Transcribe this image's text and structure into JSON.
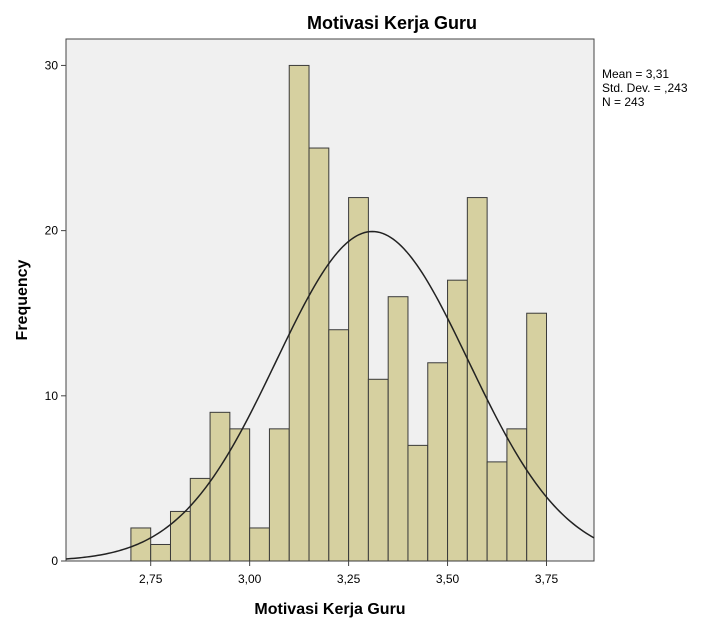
{
  "chart_data": {
    "type": "bar",
    "title": "Motivasi Kerja Guru",
    "xlabel": "Motivasi Kerja Guru",
    "ylabel": "Frequency",
    "bin_width": 0.05,
    "bins": [
      {
        "start": 2.7,
        "value": 2
      },
      {
        "start": 2.75,
        "value": 1
      },
      {
        "start": 2.8,
        "value": 3
      },
      {
        "start": 2.85,
        "value": 5
      },
      {
        "start": 2.9,
        "value": 9
      },
      {
        "start": 2.95,
        "value": 8
      },
      {
        "start": 3.0,
        "value": 2
      },
      {
        "start": 3.05,
        "value": 8
      },
      {
        "start": 3.1,
        "value": 30
      },
      {
        "start": 3.15,
        "value": 25
      },
      {
        "start": 3.2,
        "value": 14
      },
      {
        "start": 3.25,
        "value": 22
      },
      {
        "start": 3.3,
        "value": 11
      },
      {
        "start": 3.35,
        "value": 16
      },
      {
        "start": 3.4,
        "value": 7
      },
      {
        "start": 3.45,
        "value": 12
      },
      {
        "start": 3.5,
        "value": 17
      },
      {
        "start": 3.55,
        "value": 22
      },
      {
        "start": 3.6,
        "value": 6
      },
      {
        "start": 3.65,
        "value": 8
      },
      {
        "start": 3.7,
        "value": 15
      }
    ],
    "xlim": [
      2.536,
      3.87
    ],
    "ylim": [
      0,
      31.6
    ],
    "xticks": [
      {
        "value": 2.75,
        "label": "2,75"
      },
      {
        "value": 3.0,
        "label": "3,00"
      },
      {
        "value": 3.25,
        "label": "3,25"
      },
      {
        "value": 3.5,
        "label": "3,50"
      },
      {
        "value": 3.75,
        "label": "3,75"
      }
    ],
    "yticks": [
      {
        "value": 0,
        "label": "0"
      },
      {
        "value": 10,
        "label": "10"
      },
      {
        "value": 20,
        "label": "20"
      },
      {
        "value": 30,
        "label": "30"
      }
    ],
    "normal_curve": {
      "mean": 3.31,
      "std_dev": 0.243,
      "n": 243
    },
    "stats_text": [
      "Mean = 3,31",
      "Std. Dev. = ,243",
      "N = 243"
    ],
    "colors": {
      "bar_fill": "#d6d0a0",
      "bar_stroke": "#3a3a3a",
      "plot_bg": "#f0f0f0",
      "curve": "#222222"
    },
    "grid": false
  }
}
